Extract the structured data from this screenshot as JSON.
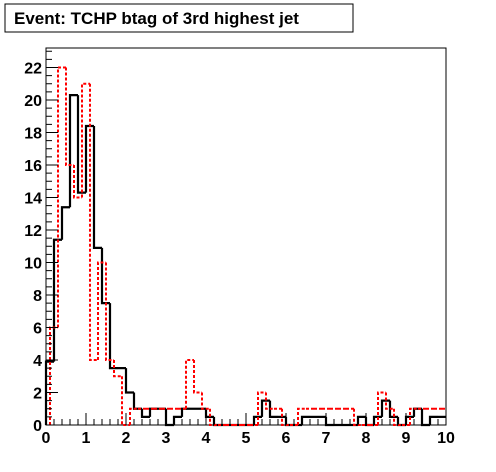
{
  "chart_data": {
    "type": "bar",
    "title": "Event: TCHP btag of 3rd highest jet",
    "xlabel": "",
    "ylabel": "",
    "xlim": [
      0,
      10
    ],
    "ylim": [
      0,
      23.2
    ],
    "bin_width": 0.2,
    "x_ticks": [
      0,
      1,
      2,
      3,
      4,
      5,
      6,
      7,
      8,
      9,
      10
    ],
    "x_tick_labels": [
      "0",
      "1",
      "2",
      "3",
      "4",
      "5",
      "6",
      "7",
      "8",
      "9",
      "10"
    ],
    "y_ticks": [
      0,
      2,
      4,
      6,
      8,
      10,
      12,
      14,
      16,
      18,
      20,
      22
    ],
    "y_tick_labels": [
      "0",
      "2",
      "4",
      "6",
      "8",
      "10",
      "12",
      "14",
      "16",
      "18",
      "20",
      "22"
    ],
    "grid": false,
    "series": [
      {
        "style": "solid",
        "color": "#000000",
        "x_start": 0.0,
        "values": [
          3.9,
          11.4,
          13.4,
          20.3,
          14.3,
          18.4,
          10.9,
          7.5,
          3.5,
          3.5,
          2.0,
          1.0,
          0.5,
          1.0,
          1.0,
          0.0,
          0.5,
          1.0,
          1.0,
          1.0,
          0.5,
          0.0,
          0.0,
          0.0,
          0.0,
          0.0,
          0.5,
          1.5,
          0.5,
          0.5,
          0.0,
          0.0,
          0.5,
          0.5,
          0.5,
          0.0,
          0.0,
          0.0,
          0.0,
          0.5,
          0.0,
          0.5,
          1.5,
          0.5,
          0.0,
          0.5,
          1.0,
          0.0,
          0.5,
          0.5,
          0.0,
          0.0,
          1.5,
          0.0,
          0.0,
          0.5,
          1.0,
          1.0,
          0.0,
          0.0
        ]
      },
      {
        "style": "dashed",
        "color": "#ff0000",
        "x_start": 0.1,
        "values": [
          6.0,
          22.0,
          16.0,
          14.0,
          21.0,
          4.0,
          10.0,
          4.0,
          3.0,
          0.0,
          1.0,
          1.0,
          1.0,
          1.0,
          1.0,
          1.0,
          1.0,
          4.0,
          2.0,
          1.0,
          0.0,
          0.0,
          0.0,
          0.0,
          0.0,
          0.0,
          2.0,
          1.0,
          1.0,
          0.0,
          0.0,
          1.0,
          1.0,
          1.0,
          1.0,
          1.0,
          1.0,
          1.0,
          0.0,
          0.0,
          0.0,
          2.0,
          1.0,
          0.0,
          0.0,
          1.0,
          1.0,
          1.0,
          1.0,
          1.0,
          1.0
        ]
      }
    ]
  }
}
